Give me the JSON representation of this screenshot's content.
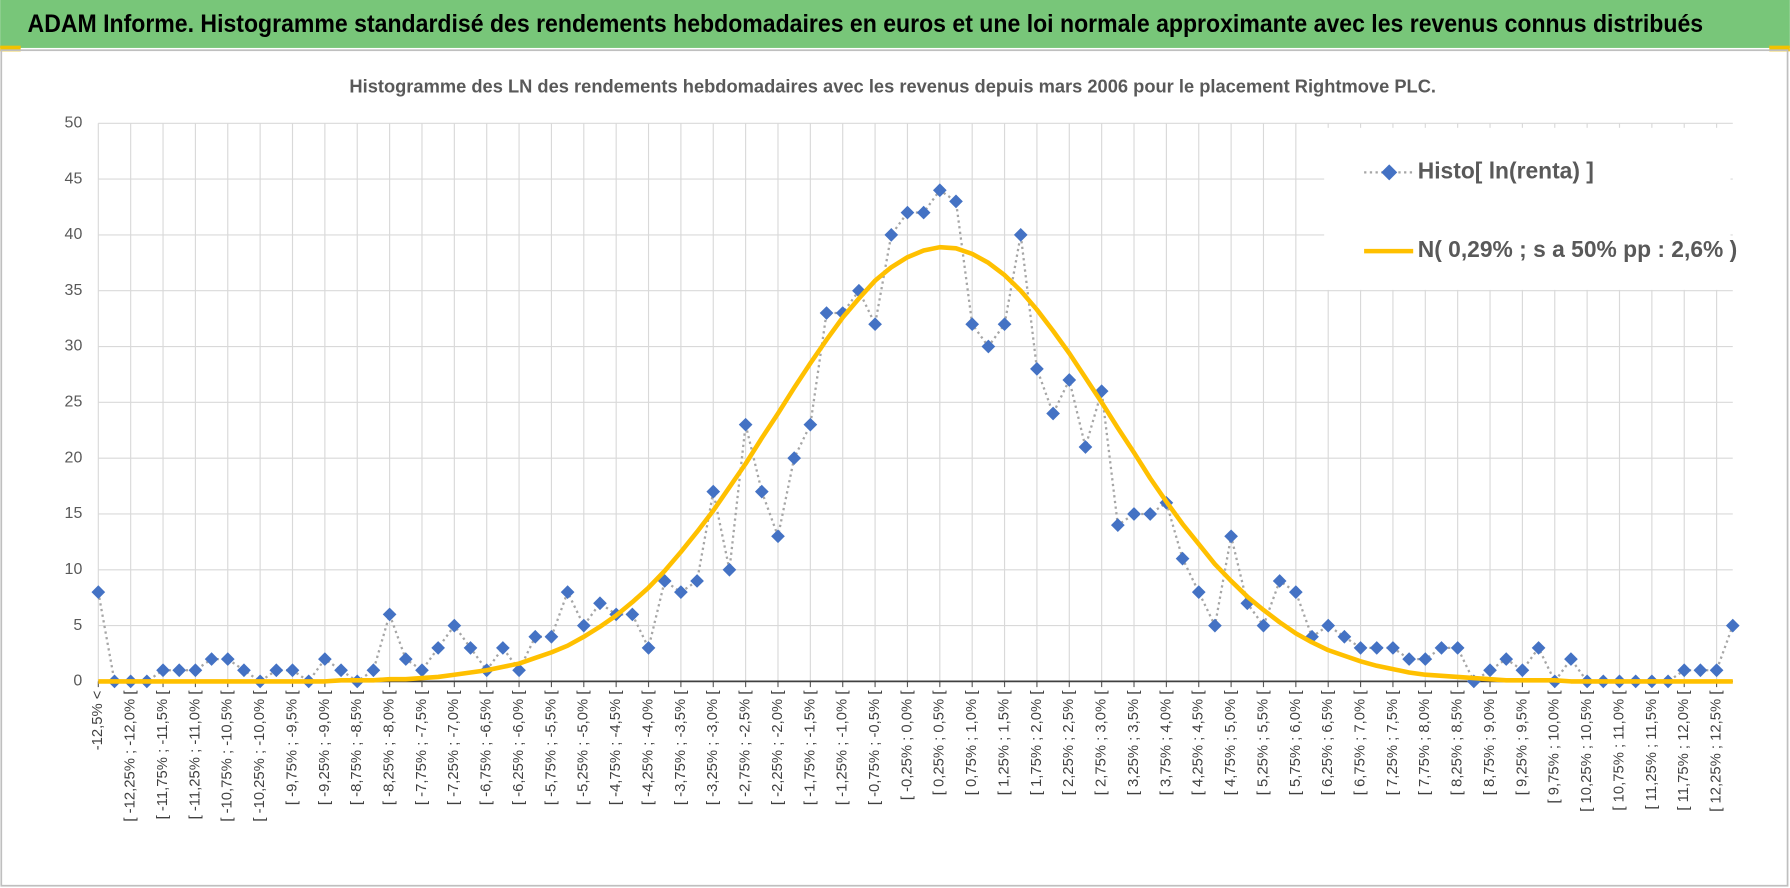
{
  "header": {
    "title": "ADAM Informe. Histogramme standardisé des rendements hebdomadaires en euros et une loi normale approximante avec les revenus connus distribués"
  },
  "chart_data": {
    "type": "line",
    "title": "Histogramme des LN des rendements hebdomadaires avec les revenus depuis mars 2006 pour le placement Rightmove PLC.",
    "categories": [
      "-12,5% <",
      null,
      "[ -12,25% ; -12,0% [",
      null,
      "[ -11,75% ; -11,5% [",
      null,
      "[ -11,25% ; -11,0% [",
      null,
      "[ -10,75% ; -10,5% [",
      null,
      "[ -10,25% ; -10,0% [",
      null,
      "[ -9,75% ; -9,5% [",
      null,
      "[ -9,25% ; -9,0% [",
      null,
      "[ -8,75% ; -8,5% [",
      null,
      "[ -8,25% ; -8,0% [",
      null,
      "[ -7,75% ; -7,5% [",
      null,
      "[ -7,25% ; -7,0% [",
      null,
      "[ -6,75% ; -6,5% [",
      null,
      "[ -6,25% ; -6,0% [",
      null,
      "[ -5,75% ; -5,5% [",
      null,
      "[ -5,25% ; -5,0% [",
      null,
      "[ -4,75% ; -4,5% [",
      null,
      "[ -4,25% ; -4,0% [",
      null,
      "[ -3,75% ; -3,5% [",
      null,
      "[ -3,25% ; -3,0% [",
      null,
      "[ -2,75% ; -2,5% [",
      null,
      "[ -2,25% ; -2,0% [",
      null,
      "[ -1,75% ; -1,5% [",
      null,
      "[ -1,25% ; -1,0% [",
      null,
      "[ -0,75% ; -0,5% [",
      null,
      "[ -0,25% ; 0,0% [",
      null,
      "[ 0,25% ; 0,5% [",
      null,
      "[ 0,75% ; 1,0% [",
      null,
      "[ 1,25% ; 1,5% [",
      null,
      "[ 1,75% ; 2,0% [",
      null,
      "[ 2,25% ; 2,5% [",
      null,
      "[ 2,75% ; 3,0% [",
      null,
      "[ 3,25% ; 3,5% [",
      null,
      "[ 3,75% ; 4,0% [",
      null,
      "[ 4,25% ; 4,5% [",
      null,
      "[ 4,75% ; 5,0% [",
      null,
      "[ 5,25% ; 5,5% [",
      null,
      "[ 5,75% ; 6,0% [",
      null,
      "[ 6,25% ; 6,5% [",
      null,
      "[ 6,75% ; 7,0% [",
      null,
      "[ 7,25% ; 7,5% [",
      null,
      "[ 7,75% ; 8,0% [",
      null,
      "[ 8,25% ; 8,5% [",
      null,
      "[ 8,75% ; 9,0% [",
      null,
      "[ 9,25% ; 9,5% [",
      null,
      "[ 9,75% ; 10,0% [",
      null,
      "[ 10,25% ; 10,5% [",
      null,
      "[ 10,75% ; 11,0% [",
      null,
      "[ 11,25% ; 11,5% [",
      null,
      "[ 11,75% ; 12,0% [",
      null,
      "[ 12,25% ; 12,5% [",
      null
    ],
    "series": [
      {
        "name": "Histo[ ln(renta) ]",
        "color": "#4472c4",
        "line_color": "#a6a6a6",
        "values": [
          8,
          0,
          0,
          0,
          1,
          1,
          1,
          2,
          2,
          1,
          0,
          1,
          1,
          0,
          2,
          1,
          0,
          1,
          6,
          2,
          1,
          3,
          5,
          3,
          1,
          3,
          1,
          4,
          4,
          8,
          5,
          7,
          6,
          6,
          3,
          9,
          8,
          9,
          17,
          10,
          23,
          17,
          13,
          20,
          23,
          33,
          33,
          35,
          32,
          40,
          42,
          42,
          44,
          43,
          32,
          30,
          32,
          40,
          28,
          24,
          27,
          21,
          26,
          14,
          15,
          15,
          16,
          11,
          8,
          5,
          13,
          7,
          5,
          9,
          8,
          4,
          5,
          4,
          3,
          3,
          3,
          2,
          2,
          3,
          3,
          0,
          1,
          2,
          1,
          3,
          0,
          2,
          0,
          0,
          0,
          0,
          0,
          0,
          1,
          1,
          1,
          5
        ]
      },
      {
        "name": "N( 0,29% ; s a 50% pp : 2,6% )",
        "color": "#ffc000",
        "values": [
          0,
          0,
          0,
          0,
          0,
          0,
          0,
          0,
          0,
          0,
          0,
          0,
          0,
          0,
          0,
          0.1,
          0.1,
          0.1,
          0.2,
          0.2,
          0.3,
          0.4,
          0.6,
          0.8,
          1.0,
          1.3,
          1.6,
          2.1,
          2.6,
          3.2,
          4.0,
          4.9,
          5.9,
          7.1,
          8.4,
          9.9,
          11.6,
          13.4,
          15.3,
          17.4,
          19.5,
          21.8,
          24.0,
          26.3,
          28.5,
          30.6,
          32.6,
          34.3,
          35.9,
          37.1,
          38.0,
          38.6,
          38.9,
          38.8,
          38.3,
          37.5,
          36.4,
          35.0,
          33.3,
          31.4,
          29.4,
          27.2,
          25.0,
          22.7,
          20.5,
          18.2,
          16.1,
          14.1,
          12.3,
          10.5,
          9.0,
          7.6,
          6.4,
          5.3,
          4.3,
          3.5,
          2.8,
          2.3,
          1.8,
          1.4,
          1.1,
          0.8,
          0.6,
          0.5,
          0.4,
          0.3,
          0.2,
          0.1,
          0.1,
          0.1,
          0.1,
          0,
          0,
          0,
          0,
          0,
          0,
          0,
          0,
          0,
          0,
          0
        ]
      }
    ],
    "ylim": [
      0,
      50
    ],
    "yticks": [
      0,
      5,
      10,
      15,
      20,
      25,
      30,
      35,
      40,
      45,
      50
    ],
    "grid": true,
    "legend": "upper right"
  }
}
